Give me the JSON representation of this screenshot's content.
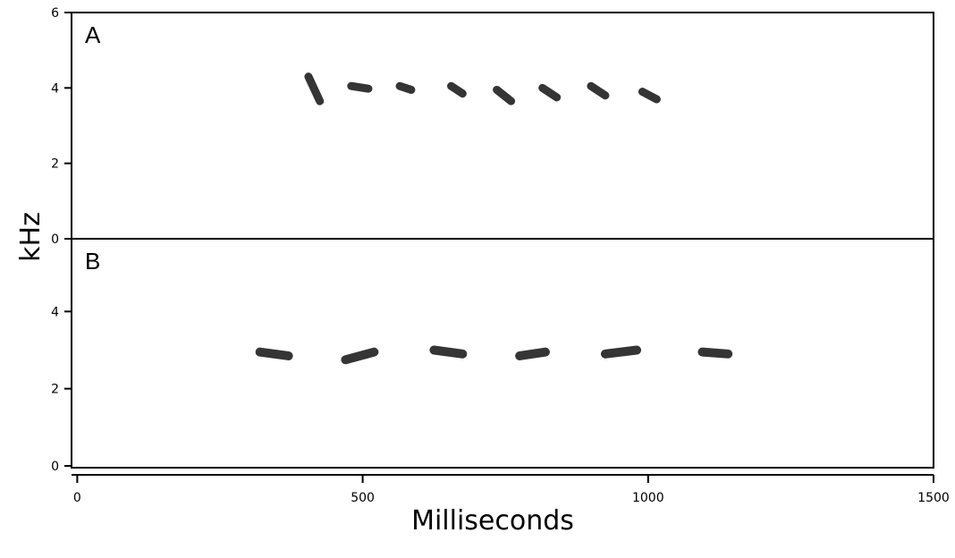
{
  "chart_data": {
    "type": "scatter",
    "subtype": "spectrogram",
    "xlabel": "Milliseconds",
    "ylabel": "kHz",
    "grid": false,
    "legend": "none",
    "x_ticks": [
      "0",
      "500",
      "1000",
      "1500"
    ],
    "x_tick_values": [
      0,
      500,
      1000,
      1500
    ],
    "xlim": [
      -10,
      1500
    ],
    "panels": [
      {
        "label": "A",
        "ylim": [
          0,
          6
        ],
        "y_ticks": [
          "0",
          "2",
          "4",
          "6"
        ],
        "y_tick_values": [
          0,
          2,
          4,
          6
        ],
        "notes": [
          {
            "t_start": 405,
            "t_end": 425,
            "f_start": 4.3,
            "f_end": 3.65
          },
          {
            "t_start": 480,
            "t_end": 510,
            "f_start": 4.05,
            "f_end": 3.98
          },
          {
            "t_start": 565,
            "t_end": 585,
            "f_start": 4.05,
            "f_end": 3.95
          },
          {
            "t_start": 655,
            "t_end": 675,
            "f_start": 4.05,
            "f_end": 3.85
          },
          {
            "t_start": 735,
            "t_end": 760,
            "f_start": 3.95,
            "f_end": 3.65
          },
          {
            "t_start": 815,
            "t_end": 840,
            "f_start": 4.0,
            "f_end": 3.75
          },
          {
            "t_start": 900,
            "t_end": 925,
            "f_start": 4.05,
            "f_end": 3.8
          },
          {
            "t_start": 990,
            "t_end": 1015,
            "f_start": 3.9,
            "f_end": 3.7
          }
        ]
      },
      {
        "label": "B",
        "ylim": [
          0,
          6
        ],
        "y_ticks": [
          "0",
          "2",
          "4"
        ],
        "y_tick_values": [
          0,
          2,
          4
        ],
        "notes": [
          {
            "t_start": 320,
            "t_end": 370,
            "f_start": 2.95,
            "f_end": 2.85
          },
          {
            "t_start": 470,
            "t_end": 520,
            "f_start": 2.75,
            "f_end": 2.95
          },
          {
            "t_start": 625,
            "t_end": 675,
            "f_start": 3.0,
            "f_end": 2.9
          },
          {
            "t_start": 775,
            "t_end": 820,
            "f_start": 2.85,
            "f_end": 2.95
          },
          {
            "t_start": 925,
            "t_end": 980,
            "f_start": 2.9,
            "f_end": 3.0
          },
          {
            "t_start": 1095,
            "t_end": 1140,
            "f_start": 2.95,
            "f_end": 2.9
          }
        ]
      }
    ]
  },
  "colors": {
    "ink": "#000000",
    "note": "#1a1a1a",
    "background": "#ffffff"
  }
}
